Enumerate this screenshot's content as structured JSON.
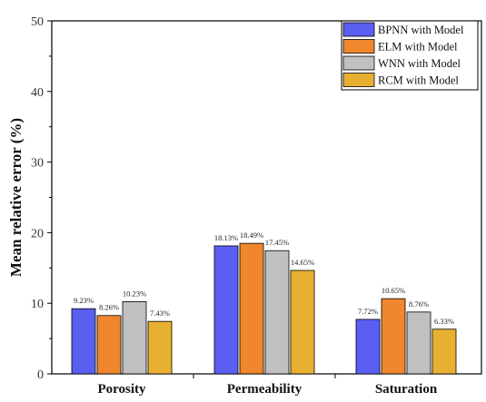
{
  "chart_data": {
    "type": "bar",
    "categories": [
      "Porosity",
      "Permeability",
      "Saturation"
    ],
    "ylabel": "Mean relative error (%)",
    "ylim": [
      0,
      50
    ],
    "yticks": [
      0,
      10,
      20,
      30,
      40,
      50
    ],
    "legend_position": "top-right",
    "series": [
      {
        "name": "BPNN with Model",
        "color": "#5a5ff2",
        "values": [
          9.23,
          18.13,
          7.72
        ],
        "labels": [
          "9.23%",
          "18.13%",
          "7.72%"
        ]
      },
      {
        "name": "ELM with Model",
        "color": "#f0862d",
        "values": [
          8.26,
          18.49,
          10.65
        ],
        "labels": [
          "8.26%",
          "18.49%",
          "10.65%"
        ]
      },
      {
        "name": "WNN with Model",
        "color": "#c0c0c0",
        "values": [
          10.23,
          17.45,
          8.76
        ],
        "labels": [
          "10.23%",
          "17.45%",
          "8.76%"
        ]
      },
      {
        "name": "RCM with Model",
        "color": "#e8b030",
        "values": [
          7.43,
          14.65,
          6.33
        ],
        "labels": [
          "7.43%",
          "14.65%",
          "6.33%"
        ]
      }
    ]
  }
}
